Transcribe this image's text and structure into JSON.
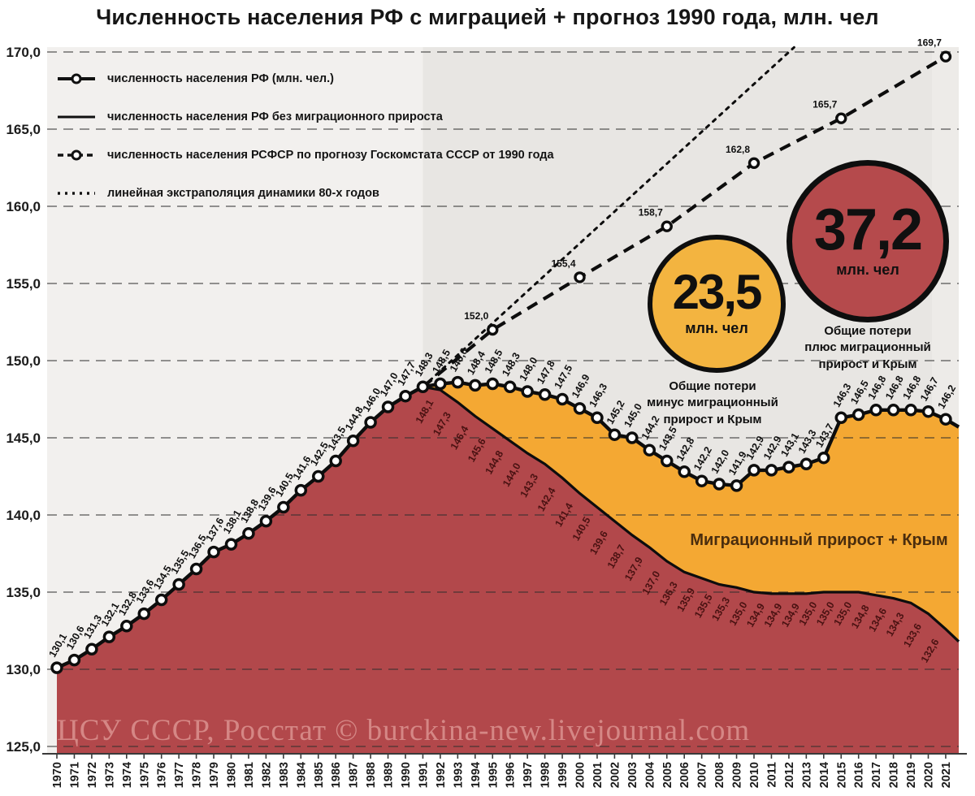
{
  "title": "Численность населения РФ с миграцией + прогноз 1990 года, млн. чел",
  "legend": [
    {
      "label": "численность населения РФ (млн. чел.)",
      "style": "line-with-marker"
    },
    {
      "label": "численность населения РФ без миграционного прироста",
      "style": "solid-line"
    },
    {
      "label": "численность населения РСФСР по прогнозу Госкомстата СССР от 1990 года",
      "style": "dashed-with-marker"
    },
    {
      "label": "линейная экстраполяция динамики 80-х годов",
      "style": "dotted-line"
    }
  ],
  "badges": [
    {
      "value": "23,5",
      "unit": "млн. чел",
      "caption_lines": [
        "Общие потери",
        "минус миграционный",
        "прирост и Крым"
      ]
    },
    {
      "value": "37,2",
      "unit": "млн. чел",
      "caption_lines": [
        "Общие потери",
        "плюс миграционный",
        "прирост и Крым"
      ]
    }
  ],
  "area_label": "Миграционный прирост + Крым",
  "watermark": "ЦСУ СССР, Росстат © burckina-new.livejournal.com",
  "chart_data": {
    "type": "line",
    "title": "Численность населения РФ с миграцией + прогноз 1990 года, млн. чел",
    "ylim": [
      125,
      170
    ],
    "ytick_step": 5,
    "grid": "dashed-horizontal",
    "legend_position": "top-left-inside",
    "background_split_year": 1991,
    "x_years": [
      1970,
      1971,
      1972,
      1973,
      1974,
      1975,
      1976,
      1977,
      1978,
      1979,
      1980,
      1981,
      1982,
      1983,
      1984,
      1985,
      1986,
      1987,
      1988,
      1989,
      1990,
      1991,
      1992,
      1993,
      1994,
      1995,
      1996,
      1997,
      1998,
      1999,
      2000,
      2001,
      2002,
      2003,
      2004,
      2005,
      2006,
      2007,
      2008,
      2009,
      2010,
      2011,
      2012,
      2013,
      2014,
      2015,
      2016,
      2017,
      2018,
      2019,
      2020,
      2021
    ],
    "series": [
      {
        "name": "численность населения РФ (млн. чел.)",
        "values": [
          130.1,
          130.6,
          131.3,
          132.1,
          132.8,
          133.6,
          134.5,
          135.5,
          136.5,
          137.6,
          138.1,
          138.8,
          139.6,
          140.5,
          141.6,
          142.5,
          143.5,
          144.8,
          146.0,
          147.0,
          147.7,
          148.3,
          148.5,
          148.6,
          148.4,
          148.5,
          148.3,
          148.0,
          147.8,
          147.5,
          146.9,
          146.3,
          145.2,
          145.0,
          144.2,
          143.5,
          142.8,
          142.2,
          142.0,
          141.9,
          142.9,
          142.9,
          143.1,
          143.3,
          143.7,
          146.3,
          146.5,
          146.8,
          146.8,
          146.8,
          146.7,
          146.2
        ]
      },
      {
        "name": "численность населения РФ без миграционного прироста",
        "x_start": 1991,
        "values": [
          148.3,
          148.1,
          147.3,
          146.4,
          145.6,
          144.8,
          144.0,
          143.3,
          142.4,
          141.4,
          140.5,
          139.6,
          138.7,
          137.9,
          137.0,
          136.3,
          135.9,
          135.5,
          135.3,
          135.0,
          134.9,
          134.9,
          134.9,
          135.0,
          135.0,
          135.0,
          134.8,
          134.6,
          134.3,
          133.6,
          132.6
        ]
      },
      {
        "name": "численность населения РСФСР по прогнозу Госкомстата СССР от 1990 года",
        "x": [
          1991,
          1995,
          2000,
          2005,
          2010,
          2015,
          2021
        ],
        "values": [
          148.3,
          152.0,
          155.4,
          158.7,
          162.8,
          165.7,
          169.7
        ]
      },
      {
        "name": "линейная экстраполяция динамики 80-х годов",
        "x": [
          1991,
          2012.3
        ],
        "values": [
          148.3,
          170.3
        ]
      }
    ],
    "right_edge_tail": {
      "actual": 145.7,
      "no_migration": 131.8
    },
    "areas": [
      {
        "name": "численность без миграционного прироста (нижняя область)",
        "color_key": "red_area"
      },
      {
        "name": "Миграционный прирост + Крым (между линиями)",
        "color_key": "orange_area"
      }
    ]
  },
  "colors": {
    "red_area": "#b2484b",
    "orange_area": "#f4a833",
    "badge_yellow": "#f3b440",
    "badge_red": "#b54a4c",
    "bg_left": "#f2f0ee",
    "bg_right": "#e8e6e3",
    "bg_far_right": "#edebe8",
    "grid": "rgba(45,45,45,0.5)",
    "line": "#0d0d0d",
    "nomig_label": "#4a1212",
    "area_label": "#4a2d0e",
    "watermark": "rgba(242,187,182,0.55)",
    "axis": "#3a3a3a"
  }
}
